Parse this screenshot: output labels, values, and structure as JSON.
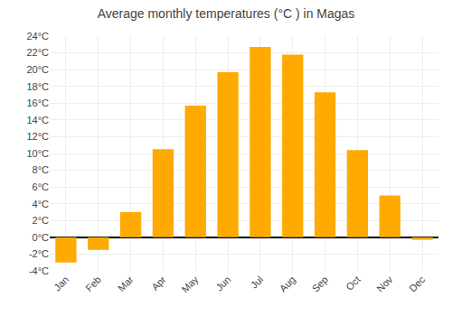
{
  "chart_data": {
    "type": "bar",
    "title": "Average monthly temperatures (°C ) in Magas",
    "categories": [
      "Jan",
      "Feb",
      "Mar",
      "Apr",
      "May",
      "Jun",
      "Jul",
      "Aug",
      "Sep",
      "Oct",
      "Nov",
      "Dec"
    ],
    "values": [
      -3.0,
      -1.5,
      3.0,
      10.5,
      15.7,
      19.7,
      22.7,
      21.8,
      17.3,
      10.4,
      5.0,
      -0.3
    ],
    "color": "#FFAA00",
    "ylim": [
      -4,
      24
    ],
    "yticks": [
      {
        "value": -4,
        "label": "-4°C"
      },
      {
        "value": -2,
        "label": "-2°C"
      },
      {
        "value": 0,
        "label": "0°C"
      },
      {
        "value": 2,
        "label": "2°C"
      },
      {
        "value": 4,
        "label": "4°C"
      },
      {
        "value": 6,
        "label": "6°C"
      },
      {
        "value": 8,
        "label": "8°C"
      },
      {
        "value": 10,
        "label": "10°C"
      },
      {
        "value": 12,
        "label": "12°C"
      },
      {
        "value": 14,
        "label": "14°C"
      },
      {
        "value": 16,
        "label": "16°C"
      },
      {
        "value": 18,
        "label": "18°C"
      },
      {
        "value": 20,
        "label": "20°C"
      },
      {
        "value": 22,
        "label": "22°C"
      },
      {
        "value": 24,
        "label": "24°C"
      }
    ],
    "grid": true
  }
}
